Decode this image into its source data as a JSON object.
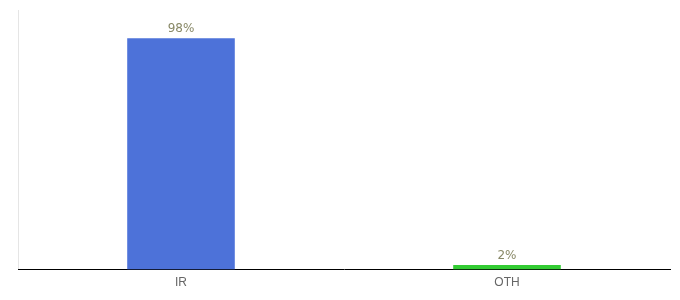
{
  "chart_data": {
    "type": "bar",
    "categories": [
      "IR",
      "OTH"
    ],
    "values": [
      98,
      2
    ],
    "value_labels": [
      "98%",
      "2%"
    ],
    "colors": [
      "#4d72d9",
      "#33cc33"
    ],
    "ylim": [
      0,
      110
    ],
    "yticks": [],
    "grid": false,
    "data_labels": true,
    "tick_labels": "x"
  }
}
